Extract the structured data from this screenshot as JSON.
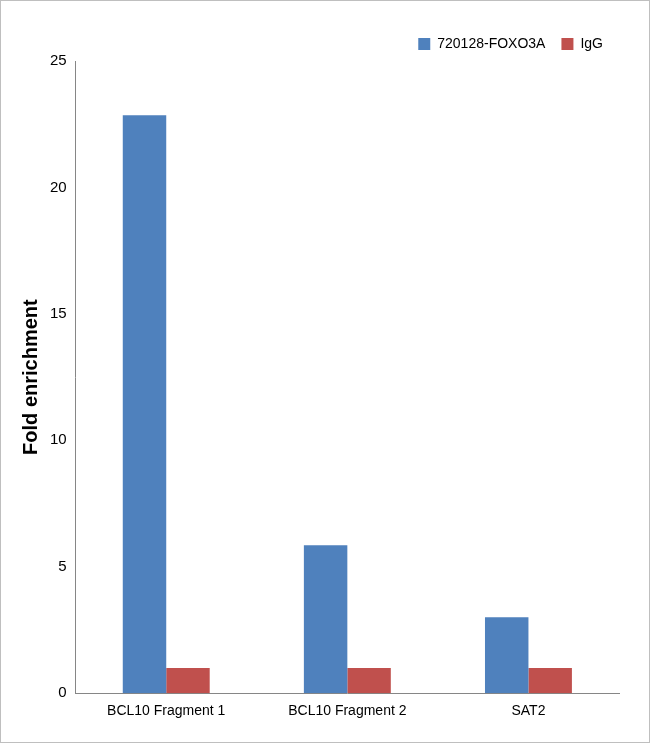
{
  "chart_data": {
    "type": "bar",
    "y_label": "Fold enrichment",
    "categories": [
      "BCL10 Fragment 1",
      "BCL10 Fragment 2",
      "SAT2"
    ],
    "series": [
      {
        "name": "720128-FOXO3A",
        "color": "#4f81bd",
        "values": [
          22.85,
          5.85,
          3.0
        ]
      },
      {
        "name": "IgG",
        "color": "#c0504d",
        "values": [
          1.0,
          1.0,
          1.0
        ]
      }
    ],
    "ylim": [
      0,
      25
    ],
    "yticks": [
      0,
      5,
      10,
      15,
      20,
      25
    ],
    "grid": false,
    "legend": "top-right"
  }
}
